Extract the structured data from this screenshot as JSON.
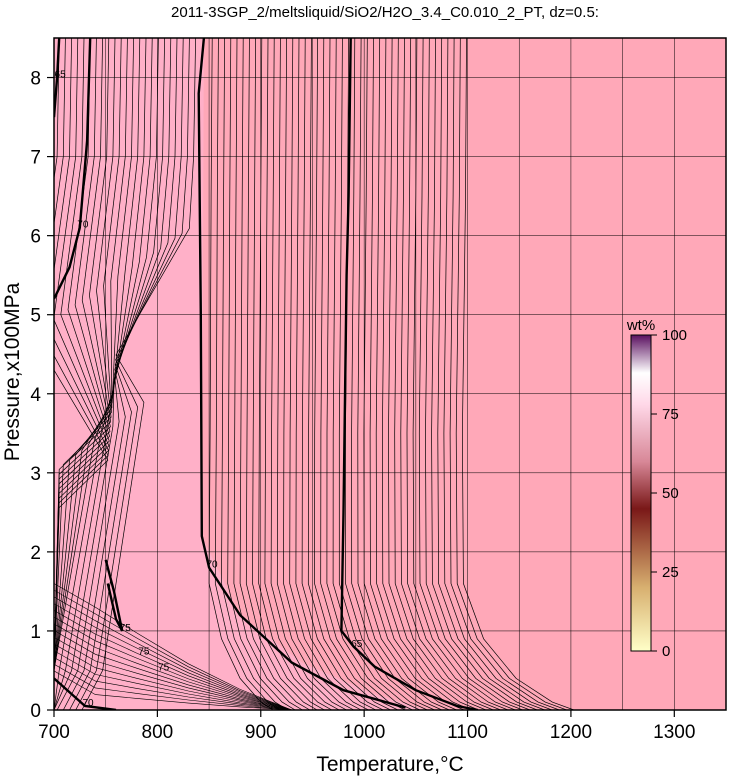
{
  "chart_data": {
    "type": "contour",
    "title": "2011-3SGP_2/meltsliquid/SiO2/H2O_3.4_C0.010_2_PT, dz=0.5:",
    "xlabel": "Temperature,°C",
    "ylabel": "Pressure,x100MPa",
    "xlim": [
      700,
      1350
    ],
    "ylim": [
      0,
      8.5
    ],
    "x_ticks": [
      700,
      800,
      900,
      1000,
      1100,
      1200,
      1300
    ],
    "y_ticks": [
      0,
      1,
      2,
      3,
      4,
      5,
      6,
      7,
      8
    ],
    "grid": true,
    "background_color": "#ffa8b8",
    "liquid_only_region_color": "#ffb0c8",
    "contour_interval": 0.5,
    "colorbar": {
      "label": "wt%",
      "range": [
        0,
        100
      ],
      "ticks": [
        0,
        25,
        50,
        75,
        100
      ],
      "colors": [
        "#ffffc8",
        "#c8a060",
        "#7a1a1a",
        "#ffc0d0",
        "#ffffff",
        "#6a1a6a"
      ]
    },
    "bold_contours": [
      {
        "label": "70",
        "points": [
          [
            700,
            5.2
          ],
          [
            715,
            5.6
          ],
          [
            725,
            6.1
          ],
          [
            732,
            7.2
          ],
          [
            735,
            8.5
          ]
        ]
      },
      {
        "label": "65",
        "points": [
          [
            700,
            7.5
          ],
          [
            703,
            8.0
          ],
          [
            705,
            8.5
          ]
        ]
      },
      {
        "label": "70",
        "points": [
          [
            845,
            8.5
          ],
          [
            840,
            7.8
          ],
          [
            842,
            5.0
          ],
          [
            843,
            2.2
          ],
          [
            850,
            1.8
          ],
          [
            880,
            1.2
          ],
          [
            930,
            0.6
          ],
          [
            980,
            0.25
          ],
          [
            1040,
            0.03
          ]
        ]
      },
      {
        "label": "65",
        "points": [
          [
            987,
            8.5
          ],
          [
            985,
            6.5
          ],
          [
            983,
            5.5
          ],
          [
            980,
            2.5
          ],
          [
            978,
            1.0
          ],
          [
            990,
            0.8
          ],
          [
            1010,
            0.55
          ],
          [
            1050,
            0.25
          ],
          [
            1090,
            0.05
          ],
          [
            1110,
            0.0
          ]
        ]
      },
      {
        "label": "75",
        "points": [
          [
            750,
            1.9
          ],
          [
            758,
            1.5
          ],
          [
            766,
            1.0
          ],
          [
            760,
            1.15
          ],
          [
            752,
            1.6
          ]
        ]
      },
      {
        "label": "70",
        "points": [
          [
            700,
            0.4
          ],
          [
            730,
            0.05
          ],
          [
            760,
            0.0
          ]
        ]
      }
    ],
    "small_labels": [
      {
        "text": "75",
        "x": 787,
        "y": 0.7
      },
      {
        "text": "75",
        "x": 806,
        "y": 0.5
      }
    ]
  }
}
